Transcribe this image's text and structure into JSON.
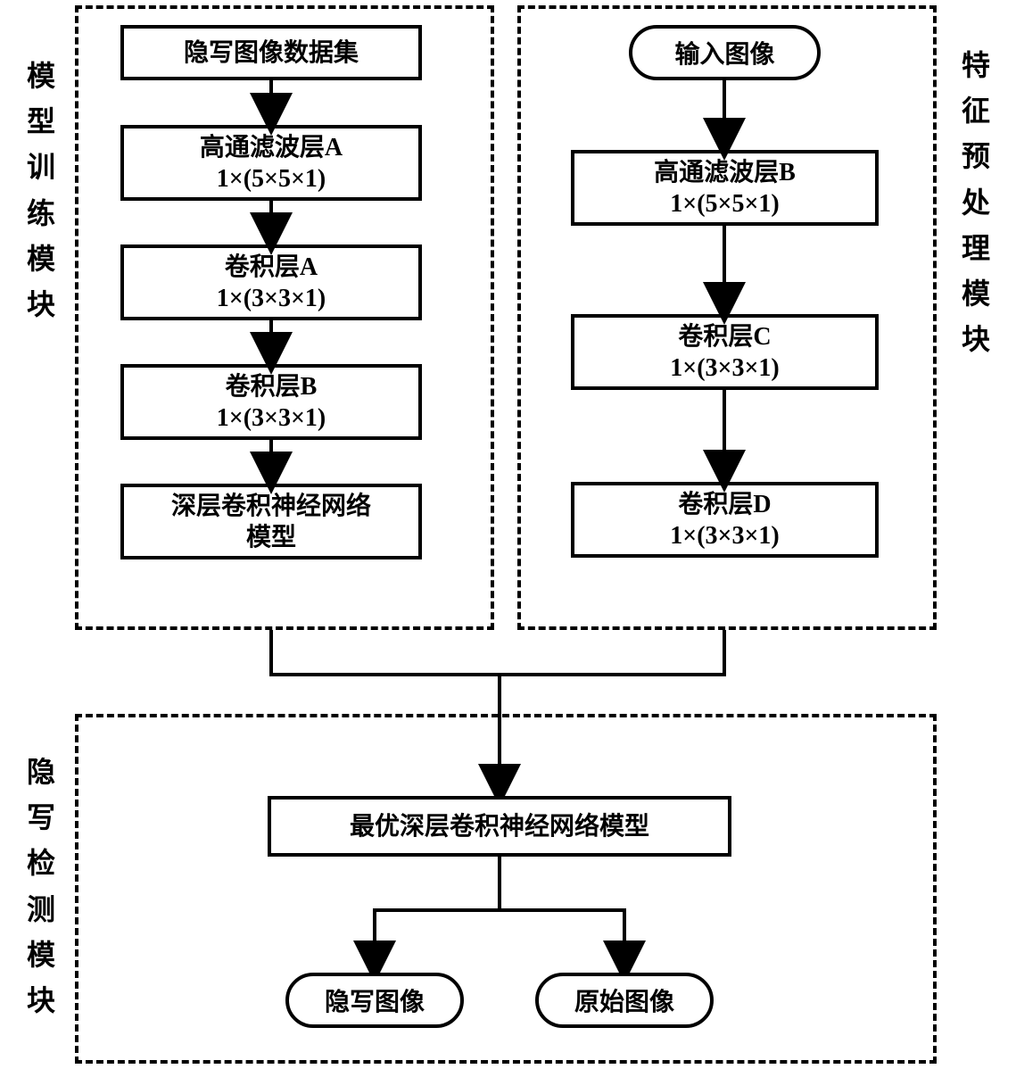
{
  "stroke": "#000000",
  "bg": "#ffffff",
  "font_main": 28,
  "font_vlabel": 32,
  "modules": {
    "left": {
      "label": "模型训练模块",
      "nodes": [
        {
          "line1": "隐写图像数据集",
          "line2": ""
        },
        {
          "line1": "高通滤波层A",
          "line2": "1×(5×5×1)"
        },
        {
          "line1": "卷积层A",
          "line2": "1×(3×3×1)"
        },
        {
          "line1": "卷积层B",
          "line2": "1×(3×3×1)"
        },
        {
          "line1": "深层卷积神经网络",
          "line2": "模型"
        }
      ]
    },
    "right": {
      "label": "特征预处理模块",
      "input_label": "输入图像",
      "nodes": [
        {
          "line1": "高通滤波层B",
          "line2": "1×(5×5×1)"
        },
        {
          "line1": "卷积层C",
          "line2": "1×(3×3×1)"
        },
        {
          "line1": "卷积层D",
          "line2": "1×(3×3×1)"
        }
      ]
    },
    "bottom": {
      "label": "隐写检测模块",
      "optimal": "最优深层卷积神经网络模型",
      "out_left": "隐写图像",
      "out_right": "原始图像"
    }
  }
}
